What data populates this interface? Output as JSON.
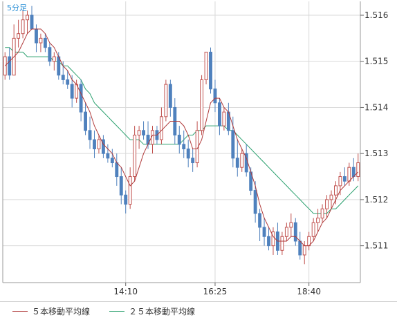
{
  "chart_data": {
    "type": "candlestick",
    "timeframe_label": "5分足",
    "y_axis": {
      "min": 1.5102,
      "max": 1.5163,
      "ticks": [
        "1.516",
        "1.515",
        "1.514",
        "1.513",
        "1.512",
        "1.511"
      ],
      "position": "right"
    },
    "x_axis": {
      "ticks": [
        "14:10",
        "16:25",
        "18:40"
      ]
    },
    "grid": true,
    "colors": {
      "up": "#c0504d",
      "down": "#4f81bd",
      "ma5": "#b03a3a",
      "ma25": "#2aa06e"
    },
    "legend": [
      {
        "label": "５本移動平均線",
        "color": "#b03a3a"
      },
      {
        "label": "２５本移動平均線",
        "color": "#2aa06e"
      }
    ],
    "candles": [
      [
        1.5147,
        1.5152,
        1.5146,
        1.5151
      ],
      [
        1.5151,
        1.5153,
        1.5146,
        1.5147
      ],
      [
        1.5147,
        1.5158,
        1.5147,
        1.5155
      ],
      [
        1.5155,
        1.5159,
        1.5153,
        1.5156
      ],
      [
        1.5156,
        1.5161,
        1.5155,
        1.5159
      ],
      [
        1.5159,
        1.5161,
        1.5156,
        1.516
      ],
      [
        1.516,
        1.5162,
        1.5157,
        1.5157
      ],
      [
        1.5157,
        1.5158,
        1.5152,
        1.5154
      ],
      [
        1.5154,
        1.5156,
        1.5152,
        1.5155
      ],
      [
        1.5155,
        1.5156,
        1.5152,
        1.5153
      ],
      [
        1.5153,
        1.5154,
        1.5149,
        1.515
      ],
      [
        1.515,
        1.5152,
        1.5148,
        1.5151
      ],
      [
        1.5151,
        1.5152,
        1.5146,
        1.5147
      ],
      [
        1.5147,
        1.515,
        1.5145,
        1.5146
      ],
      [
        1.5146,
        1.5148,
        1.5144,
        1.5145
      ],
      [
        1.5145,
        1.5147,
        1.514,
        1.5142
      ],
      [
        1.5142,
        1.5146,
        1.5141,
        1.5145
      ],
      [
        1.5145,
        1.5146,
        1.5137,
        1.5139
      ],
      [
        1.5139,
        1.5141,
        1.5134,
        1.5135
      ],
      [
        1.5135,
        1.5138,
        1.5131,
        1.5133
      ],
      [
        1.5133,
        1.5135,
        1.5129,
        1.5131
      ],
      [
        1.5131,
        1.5134,
        1.513,
        1.5133
      ],
      [
        1.5133,
        1.5134,
        1.5129,
        1.513
      ],
      [
        1.513,
        1.5132,
        1.5128,
        1.5129
      ],
      [
        1.5129,
        1.5131,
        1.5127,
        1.5128
      ],
      [
        1.5128,
        1.513,
        1.5123,
        1.5125
      ],
      [
        1.5125,
        1.5127,
        1.5119,
        1.5121
      ],
      [
        1.5121,
        1.5122,
        1.5117,
        1.5119
      ],
      [
        1.5119,
        1.5127,
        1.5118,
        1.5125
      ],
      [
        1.5125,
        1.5136,
        1.5124,
        1.5134
      ],
      [
        1.5134,
        1.5136,
        1.5131,
        1.5135
      ],
      [
        1.5135,
        1.5137,
        1.5133,
        1.5134
      ],
      [
        1.5134,
        1.5137,
        1.5131,
        1.5132
      ],
      [
        1.5132,
        1.5136,
        1.513,
        1.5135
      ],
      [
        1.5135,
        1.5136,
        1.5132,
        1.5133
      ],
      [
        1.5133,
        1.514,
        1.5132,
        1.5138
      ],
      [
        1.5138,
        1.5146,
        1.5137,
        1.5145
      ],
      [
        1.5145,
        1.5146,
        1.5138,
        1.514
      ],
      [
        1.514,
        1.5142,
        1.5132,
        1.5134
      ],
      [
        1.5134,
        1.5136,
        1.513,
        1.5132
      ],
      [
        1.5132,
        1.5135,
        1.5129,
        1.5131
      ],
      [
        1.5131,
        1.5133,
        1.5127,
        1.5129
      ],
      [
        1.5129,
        1.5131,
        1.5126,
        1.5128
      ],
      [
        1.5128,
        1.5137,
        1.5127,
        1.5135
      ],
      [
        1.5135,
        1.5147,
        1.5134,
        1.5146
      ],
      [
        1.5146,
        1.5152,
        1.5145,
        1.5152
      ],
      [
        1.5152,
        1.5153,
        1.5143,
        1.5144
      ],
      [
        1.5144,
        1.5146,
        1.5139,
        1.5141
      ],
      [
        1.5141,
        1.5142,
        1.5134,
        1.5136
      ],
      [
        1.5136,
        1.514,
        1.5135,
        1.5139
      ],
      [
        1.5139,
        1.5141,
        1.5134,
        1.5135
      ],
      [
        1.5135,
        1.5138,
        1.5127,
        1.5129
      ],
      [
        1.5129,
        1.5133,
        1.5125,
        1.5127
      ],
      [
        1.5127,
        1.5131,
        1.5126,
        1.513
      ],
      [
        1.513,
        1.5132,
        1.5125,
        1.5126
      ],
      [
        1.5126,
        1.5127,
        1.5121,
        1.5122
      ],
      [
        1.5122,
        1.5124,
        1.5115,
        1.5117
      ],
      [
        1.5117,
        1.5118,
        1.5111,
        1.5114
      ],
      [
        1.5114,
        1.5116,
        1.511,
        1.5112
      ],
      [
        1.5112,
        1.5114,
        1.5109,
        1.511
      ],
      [
        1.511,
        1.5114,
        1.5108,
        1.5113
      ],
      [
        1.5113,
        1.5115,
        1.5108,
        1.5109
      ],
      [
        1.5109,
        1.5113,
        1.5108,
        1.5112
      ],
      [
        1.5112,
        1.5115,
        1.5111,
        1.5114
      ],
      [
        1.5114,
        1.5117,
        1.5112,
        1.5115
      ],
      [
        1.5115,
        1.5116,
        1.511,
        1.5111
      ],
      [
        1.5111,
        1.5113,
        1.5107,
        1.5108
      ],
      [
        1.5108,
        1.5111,
        1.5106,
        1.511
      ],
      [
        1.511,
        1.5113,
        1.5109,
        1.5112
      ],
      [
        1.5112,
        1.5116,
        1.5111,
        1.5115
      ],
      [
        1.5115,
        1.5118,
        1.5113,
        1.5116
      ],
      [
        1.5116,
        1.5119,
        1.5115,
        1.5118
      ],
      [
        1.5118,
        1.5121,
        1.5116,
        1.512
      ],
      [
        1.512,
        1.5122,
        1.5118,
        1.5121
      ],
      [
        1.5121,
        1.5124,
        1.5119,
        1.5123
      ],
      [
        1.5123,
        1.5126,
        1.5121,
        1.5125
      ],
      [
        1.5125,
        1.5127,
        1.5123,
        1.5124
      ],
      [
        1.5124,
        1.5128,
        1.5123,
        1.5127
      ],
      [
        1.5127,
        1.5129,
        1.5124,
        1.5125
      ],
      [
        1.5125,
        1.513,
        1.5124,
        1.5128
      ]
    ],
    "ma5": [
      1.5149,
      1.515,
      1.5151,
      1.5152,
      1.5154,
      1.5156,
      1.5157,
      1.5157,
      1.5157,
      1.5156,
      1.5154,
      1.5153,
      1.5151,
      1.5149,
      1.5148,
      1.5146,
      1.5145,
      1.5143,
      1.5141,
      1.5139,
      1.5136,
      1.5134,
      1.5132,
      1.5131,
      1.513,
      1.5128,
      1.5127,
      1.5125,
      1.5123,
      1.5124,
      1.5127,
      1.513,
      1.5132,
      1.5134,
      1.5134,
      1.5135,
      1.5136,
      1.5137,
      1.5137,
      1.5137,
      1.5136,
      1.5134,
      1.5131,
      1.5131,
      1.5133,
      1.5137,
      1.5141,
      1.5142,
      1.5142,
      1.514,
      1.5139,
      1.5136,
      1.5133,
      1.5131,
      1.5129,
      1.5126,
      1.5123,
      1.5119,
      1.5116,
      1.5114,
      1.5112,
      1.5111,
      1.5111,
      1.5111,
      1.5112,
      1.5112,
      1.5111,
      1.511,
      1.511,
      1.5111,
      1.5113,
      1.5115,
      1.5116,
      1.5118,
      1.512,
      1.5122,
      1.5123,
      1.5124,
      1.5125,
      1.5126
    ],
    "ma25": [
      1.5153,
      1.5153,
      1.5152,
      1.5152,
      1.5152,
      1.5151,
      1.5151,
      1.5151,
      1.5151,
      1.5151,
      1.5151,
      1.515,
      1.515,
      1.5149,
      1.5149,
      1.5148,
      1.5147,
      1.5146,
      1.5144,
      1.5143,
      1.5141,
      1.514,
      1.5139,
      1.5138,
      1.5137,
      1.5136,
      1.5135,
      1.5134,
      1.5133,
      1.5133,
      1.5133,
      1.5132,
      1.5132,
      1.5132,
      1.5132,
      1.5132,
      1.5132,
      1.5132,
      1.5132,
      1.5132,
      1.5133,
      1.5134,
      1.5134,
      1.5135,
      1.5135,
      1.5136,
      1.5136,
      1.5136,
      1.5136,
      1.5136,
      1.5135,
      1.5135,
      1.5134,
      1.5133,
      1.5132,
      1.5131,
      1.513,
      1.5129,
      1.5128,
      1.5127,
      1.5126,
      1.5125,
      1.5124,
      1.5123,
      1.5122,
      1.5121,
      1.512,
      1.5119,
      1.5118,
      1.5117,
      1.5117,
      1.5117,
      1.5117,
      1.5118,
      1.5118,
      1.5119,
      1.512,
      1.5121,
      1.5122,
      1.5123
    ]
  }
}
